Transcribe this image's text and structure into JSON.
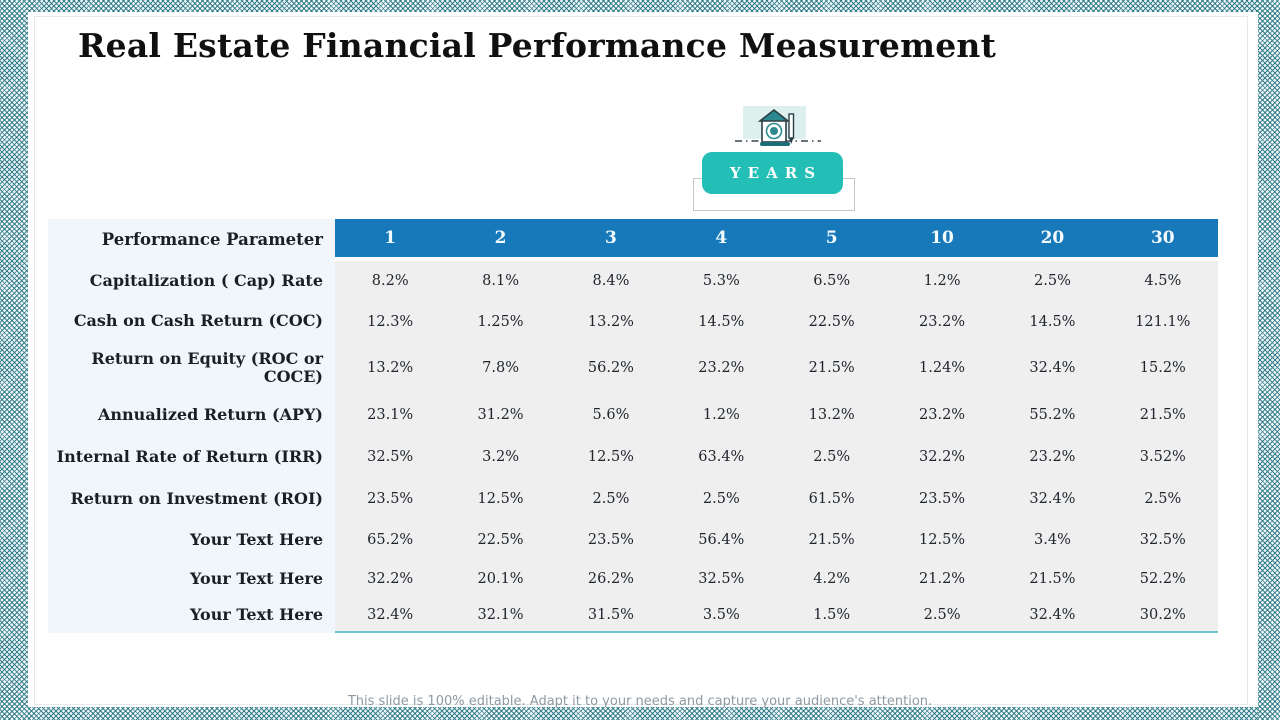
{
  "slide": {
    "title": "Real Estate Financial Performance Measurement",
    "badge_label": "YEARS",
    "footer_note": "This slide is 100% editable. Adapt it to your needs and capture your audience's attention.",
    "icon": "house-calculator-pencil-icon",
    "colors": {
      "header_blue": "#1779ba",
      "badge_teal": "#23beb6",
      "border_teal": "#2a7685",
      "label_column_bg": "#f0f6fb",
      "data_cell_bg": "#efefef",
      "table_underline": "#6cc4ce"
    }
  },
  "table": {
    "header_label": "Performance Parameter",
    "years": [
      "1",
      "2",
      "3",
      "4",
      "5",
      "10",
      "20",
      "30"
    ],
    "rows": [
      {
        "label": "Capitalization ( Cap) Rate",
        "values": [
          "8.2%",
          "8.1%",
          "8.4%",
          "5.3%",
          "6.5%",
          "1.2%",
          "2.5%",
          "4.5%"
        ]
      },
      {
        "label": "Cash on Cash Return (COC)",
        "values": [
          "12.3%",
          "1.25%",
          "13.2%",
          "14.5%",
          "22.5%",
          "23.2%",
          "14.5%",
          "121.1%"
        ]
      },
      {
        "label": "Return on Equity (ROC or COCE)",
        "values": [
          "13.2%",
          "7.8%",
          "56.2%",
          "23.2%",
          "21.5%",
          "1.24%",
          "32.4%",
          "15.2%"
        ]
      },
      {
        "label": "Annualized Return (APY)",
        "values": [
          "23.1%",
          "31.2%",
          "5.6%",
          "1.2%",
          "13.2%",
          "23.2%",
          "55.2%",
          "21.5%"
        ]
      },
      {
        "label": "Internal Rate of Return (IRR)",
        "values": [
          "32.5%",
          "3.2%",
          "12.5%",
          "63.4%",
          "2.5%",
          "32.2%",
          "23.2%",
          "3.52%"
        ]
      },
      {
        "label": "Return on Investment (ROI)",
        "values": [
          "23.5%",
          "12.5%",
          "2.5%",
          "2.5%",
          "61.5%",
          "23.5%",
          "32.4%",
          "2.5%"
        ]
      },
      {
        "label": "Your Text Here",
        "values": [
          "65.2%",
          "22.5%",
          "23.5%",
          "56.4%",
          "21.5%",
          "12.5%",
          "3.4%",
          "32.5%"
        ]
      },
      {
        "label": "Your Text Here",
        "values": [
          "32.2%",
          "20.1%",
          "26.2%",
          "32.5%",
          "4.2%",
          "21.2%",
          "21.5%",
          "52.2%"
        ]
      },
      {
        "label": "Your Text Here",
        "values": [
          "32.4%",
          "32.1%",
          "31.5%",
          "3.5%",
          "1.5%",
          "2.5%",
          "32.4%",
          "30.2%"
        ]
      }
    ]
  }
}
